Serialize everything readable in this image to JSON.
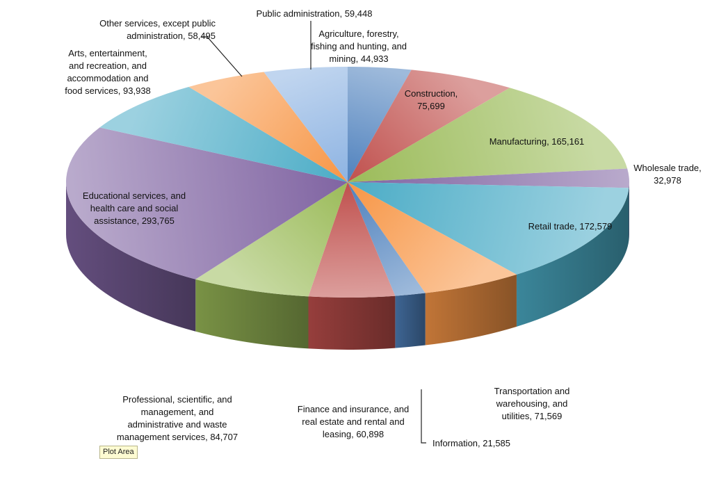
{
  "chart_data": {
    "type": "pie",
    "style": "3d",
    "legend": "none",
    "slices": [
      {
        "name": "Agriculture, forestry, fishing and hunting, and mining",
        "value": 44933,
        "label": "Agriculture, forestry,\nfishing and hunting, and\nmining, 44,933",
        "color": "#4f81bd"
      },
      {
        "name": "Construction",
        "value": 75699,
        "label": "Construction,\n75,699",
        "color": "#c0504d"
      },
      {
        "name": "Manufacturing",
        "value": 165161,
        "label": "Manufacturing, 165,161",
        "color": "#9bbb59"
      },
      {
        "name": "Wholesale trade",
        "value": 32978,
        "label": "Wholesale trade,\n32,978",
        "color": "#8064a2"
      },
      {
        "name": "Retail trade",
        "value": 172579,
        "label": "Retail trade, 172,579",
        "color": "#4bacc6"
      },
      {
        "name": "Transportation and warehousing, and utilities",
        "value": 71569,
        "label": "Transportation and\nwarehousing, and\nutilities, 71,569",
        "color": "#f79646"
      },
      {
        "name": "Information",
        "value": 21585,
        "label": "Information, 21,585",
        "color": "#4f81bd"
      },
      {
        "name": "Finance and insurance, and real estate and rental and leasing",
        "value": 60898,
        "label": "Finance and insurance, and\nreal estate and rental and\nleasing, 60,898",
        "color": "#c0504d"
      },
      {
        "name": "Professional, scientific, and management, and administrative and waste management services",
        "value": 84707,
        "label": "Professional, scientific, and\nmanagement, and\nadministrative and waste\nmanagement services, 84,707",
        "color": "#9bbb59"
      },
      {
        "name": "Educational services, and health care and social assistance",
        "value": 293765,
        "label": "Educational services, and\nhealth care and social\nassistance, 293,765",
        "color": "#8064a2"
      },
      {
        "name": "Arts, entertainment, and recreation, and accommodation and food services",
        "value": 93938,
        "label": "Arts, entertainment,\nand recreation, and\naccommodation and\nfood services, 93,938",
        "color": "#4bacc6"
      },
      {
        "name": "Other services, except public administration",
        "value": 58495,
        "label": "Other services, except public\nadministration, 58,495",
        "color": "#f79646"
      },
      {
        "name": "Public administration",
        "value": 59448,
        "label": "Public administration, 59,448",
        "color": "#8db3e2"
      }
    ]
  },
  "tooltip": {
    "text": "Plot Area"
  }
}
